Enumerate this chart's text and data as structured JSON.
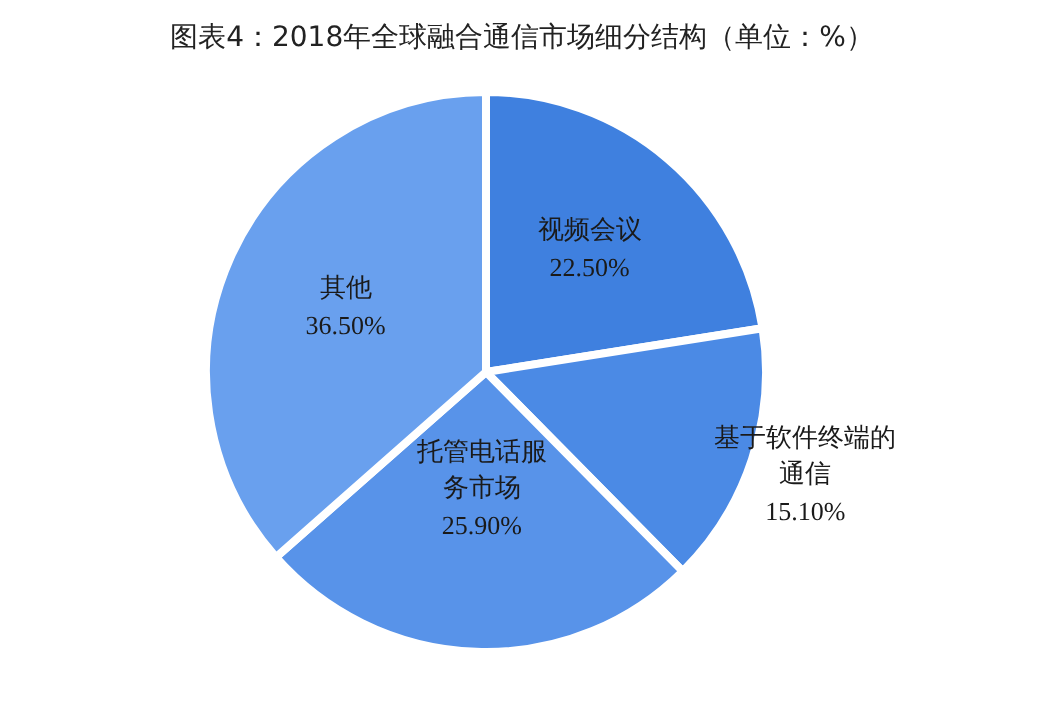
{
  "chart_data": {
    "type": "pie",
    "title": "图表4：2018年全球融合通信市场细分结构（单位：%）",
    "categories": [
      "视频会议",
      "基于软件终端的通信",
      "托管电话服务市场",
      "其他"
    ],
    "values": [
      22.5,
      15.1,
      25.9,
      36.5
    ],
    "value_labels": [
      "22.50%",
      "15.10%",
      "25.90%",
      "36.50%"
    ],
    "colors": [
      "#3f80df",
      "#4b8ae5",
      "#5893e9",
      "#69a0ee"
    ]
  }
}
